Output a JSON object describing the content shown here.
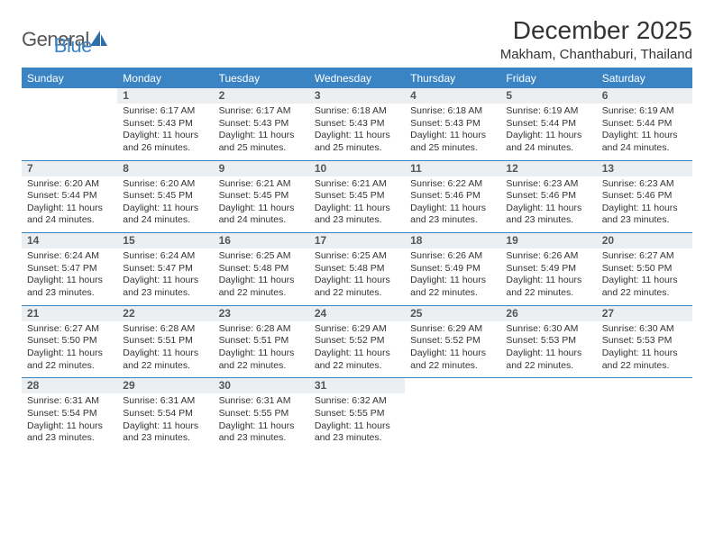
{
  "brand": {
    "general": "General",
    "blue": "Blue"
  },
  "colors": {
    "accent": "#3a84c4",
    "daybar_bg": "#eceff1",
    "text": "#333333",
    "muted": "#555555",
    "background": "#ffffff"
  },
  "title": "December 2025",
  "subtitle": "Makham, Chanthaburi, Thailand",
  "day_headers": [
    "Sunday",
    "Monday",
    "Tuesday",
    "Wednesday",
    "Thursday",
    "Friday",
    "Saturday"
  ],
  "weeks": [
    [
      {
        "empty": true
      },
      {
        "day": "1",
        "sunrise": "Sunrise: 6:17 AM",
        "sunset": "Sunset: 5:43 PM",
        "dl1": "Daylight: 11 hours",
        "dl2": "and 26 minutes."
      },
      {
        "day": "2",
        "sunrise": "Sunrise: 6:17 AM",
        "sunset": "Sunset: 5:43 PM",
        "dl1": "Daylight: 11 hours",
        "dl2": "and 25 minutes."
      },
      {
        "day": "3",
        "sunrise": "Sunrise: 6:18 AM",
        "sunset": "Sunset: 5:43 PM",
        "dl1": "Daylight: 11 hours",
        "dl2": "and 25 minutes."
      },
      {
        "day": "4",
        "sunrise": "Sunrise: 6:18 AM",
        "sunset": "Sunset: 5:43 PM",
        "dl1": "Daylight: 11 hours",
        "dl2": "and 25 minutes."
      },
      {
        "day": "5",
        "sunrise": "Sunrise: 6:19 AM",
        "sunset": "Sunset: 5:44 PM",
        "dl1": "Daylight: 11 hours",
        "dl2": "and 24 minutes."
      },
      {
        "day": "6",
        "sunrise": "Sunrise: 6:19 AM",
        "sunset": "Sunset: 5:44 PM",
        "dl1": "Daylight: 11 hours",
        "dl2": "and 24 minutes."
      }
    ],
    [
      {
        "day": "7",
        "sunrise": "Sunrise: 6:20 AM",
        "sunset": "Sunset: 5:44 PM",
        "dl1": "Daylight: 11 hours",
        "dl2": "and 24 minutes."
      },
      {
        "day": "8",
        "sunrise": "Sunrise: 6:20 AM",
        "sunset": "Sunset: 5:45 PM",
        "dl1": "Daylight: 11 hours",
        "dl2": "and 24 minutes."
      },
      {
        "day": "9",
        "sunrise": "Sunrise: 6:21 AM",
        "sunset": "Sunset: 5:45 PM",
        "dl1": "Daylight: 11 hours",
        "dl2": "and 24 minutes."
      },
      {
        "day": "10",
        "sunrise": "Sunrise: 6:21 AM",
        "sunset": "Sunset: 5:45 PM",
        "dl1": "Daylight: 11 hours",
        "dl2": "and 23 minutes."
      },
      {
        "day": "11",
        "sunrise": "Sunrise: 6:22 AM",
        "sunset": "Sunset: 5:46 PM",
        "dl1": "Daylight: 11 hours",
        "dl2": "and 23 minutes."
      },
      {
        "day": "12",
        "sunrise": "Sunrise: 6:23 AM",
        "sunset": "Sunset: 5:46 PM",
        "dl1": "Daylight: 11 hours",
        "dl2": "and 23 minutes."
      },
      {
        "day": "13",
        "sunrise": "Sunrise: 6:23 AM",
        "sunset": "Sunset: 5:46 PM",
        "dl1": "Daylight: 11 hours",
        "dl2": "and 23 minutes."
      }
    ],
    [
      {
        "day": "14",
        "sunrise": "Sunrise: 6:24 AM",
        "sunset": "Sunset: 5:47 PM",
        "dl1": "Daylight: 11 hours",
        "dl2": "and 23 minutes."
      },
      {
        "day": "15",
        "sunrise": "Sunrise: 6:24 AM",
        "sunset": "Sunset: 5:47 PM",
        "dl1": "Daylight: 11 hours",
        "dl2": "and 23 minutes."
      },
      {
        "day": "16",
        "sunrise": "Sunrise: 6:25 AM",
        "sunset": "Sunset: 5:48 PM",
        "dl1": "Daylight: 11 hours",
        "dl2": "and 22 minutes."
      },
      {
        "day": "17",
        "sunrise": "Sunrise: 6:25 AM",
        "sunset": "Sunset: 5:48 PM",
        "dl1": "Daylight: 11 hours",
        "dl2": "and 22 minutes."
      },
      {
        "day": "18",
        "sunrise": "Sunrise: 6:26 AM",
        "sunset": "Sunset: 5:49 PM",
        "dl1": "Daylight: 11 hours",
        "dl2": "and 22 minutes."
      },
      {
        "day": "19",
        "sunrise": "Sunrise: 6:26 AM",
        "sunset": "Sunset: 5:49 PM",
        "dl1": "Daylight: 11 hours",
        "dl2": "and 22 minutes."
      },
      {
        "day": "20",
        "sunrise": "Sunrise: 6:27 AM",
        "sunset": "Sunset: 5:50 PM",
        "dl1": "Daylight: 11 hours",
        "dl2": "and 22 minutes."
      }
    ],
    [
      {
        "day": "21",
        "sunrise": "Sunrise: 6:27 AM",
        "sunset": "Sunset: 5:50 PM",
        "dl1": "Daylight: 11 hours",
        "dl2": "and 22 minutes."
      },
      {
        "day": "22",
        "sunrise": "Sunrise: 6:28 AM",
        "sunset": "Sunset: 5:51 PM",
        "dl1": "Daylight: 11 hours",
        "dl2": "and 22 minutes."
      },
      {
        "day": "23",
        "sunrise": "Sunrise: 6:28 AM",
        "sunset": "Sunset: 5:51 PM",
        "dl1": "Daylight: 11 hours",
        "dl2": "and 22 minutes."
      },
      {
        "day": "24",
        "sunrise": "Sunrise: 6:29 AM",
        "sunset": "Sunset: 5:52 PM",
        "dl1": "Daylight: 11 hours",
        "dl2": "and 22 minutes."
      },
      {
        "day": "25",
        "sunrise": "Sunrise: 6:29 AM",
        "sunset": "Sunset: 5:52 PM",
        "dl1": "Daylight: 11 hours",
        "dl2": "and 22 minutes."
      },
      {
        "day": "26",
        "sunrise": "Sunrise: 6:30 AM",
        "sunset": "Sunset: 5:53 PM",
        "dl1": "Daylight: 11 hours",
        "dl2": "and 22 minutes."
      },
      {
        "day": "27",
        "sunrise": "Sunrise: 6:30 AM",
        "sunset": "Sunset: 5:53 PM",
        "dl1": "Daylight: 11 hours",
        "dl2": "and 22 minutes."
      }
    ],
    [
      {
        "day": "28",
        "sunrise": "Sunrise: 6:31 AM",
        "sunset": "Sunset: 5:54 PM",
        "dl1": "Daylight: 11 hours",
        "dl2": "and 23 minutes."
      },
      {
        "day": "29",
        "sunrise": "Sunrise: 6:31 AM",
        "sunset": "Sunset: 5:54 PM",
        "dl1": "Daylight: 11 hours",
        "dl2": "and 23 minutes."
      },
      {
        "day": "30",
        "sunrise": "Sunrise: 6:31 AM",
        "sunset": "Sunset: 5:55 PM",
        "dl1": "Daylight: 11 hours",
        "dl2": "and 23 minutes."
      },
      {
        "day": "31",
        "sunrise": "Sunrise: 6:32 AM",
        "sunset": "Sunset: 5:55 PM",
        "dl1": "Daylight: 11 hours",
        "dl2": "and 23 minutes."
      },
      {
        "empty": true
      },
      {
        "empty": true
      },
      {
        "empty": true
      }
    ]
  ]
}
